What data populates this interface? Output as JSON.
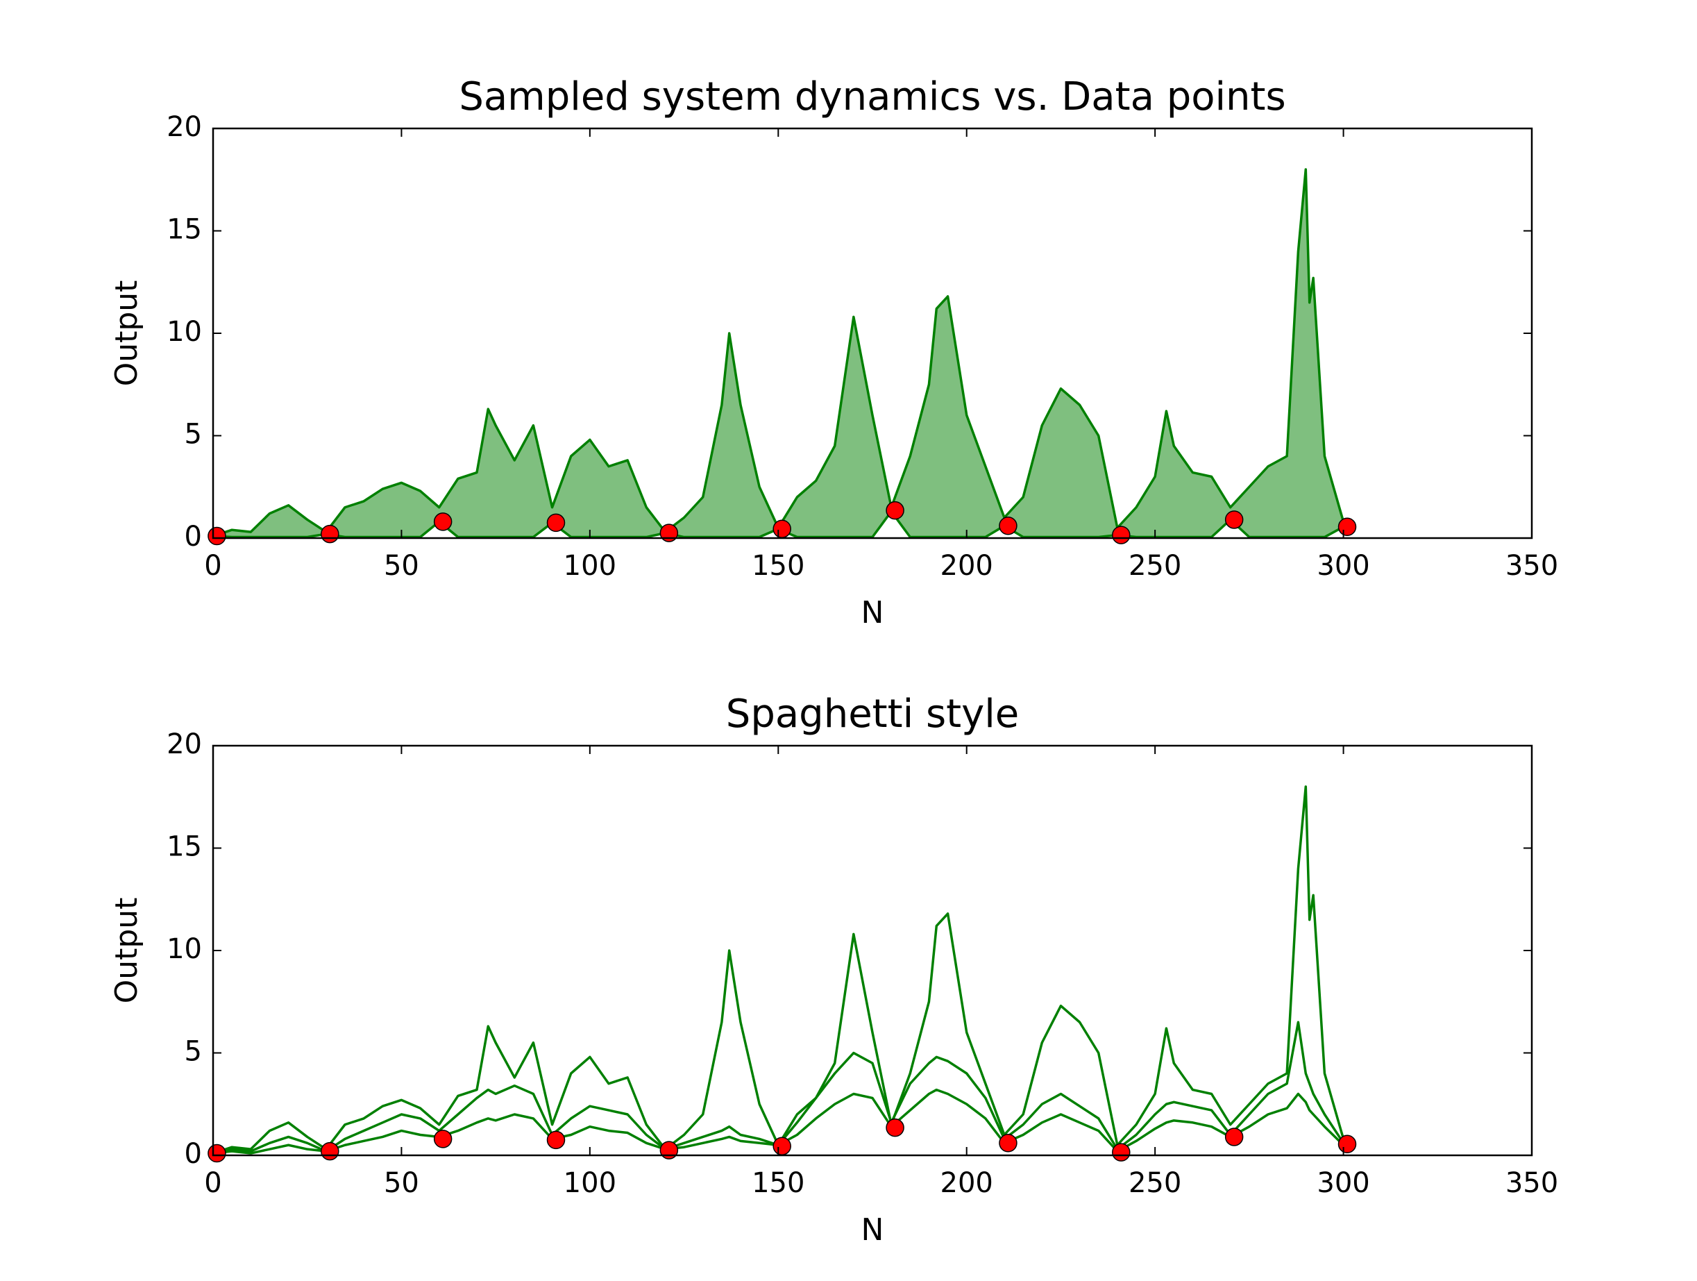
{
  "chart_data": [
    {
      "type": "area",
      "title": "Sampled system dynamics vs. Data points",
      "xlabel": "N",
      "ylabel": "Output",
      "xlim": [
        0,
        350
      ],
      "xticks": [
        0,
        50,
        100,
        150,
        200,
        250,
        300,
        350
      ],
      "ylim": [
        0,
        20
      ],
      "yticks": [
        0,
        5,
        10,
        15,
        20
      ],
      "fill": "#7fbf7f",
      "x": [
        0,
        5,
        10,
        15,
        20,
        25,
        30,
        35,
        40,
        45,
        50,
        55,
        60,
        65,
        70,
        73,
        75,
        80,
        85,
        90,
        95,
        100,
        105,
        110,
        115,
        120,
        125,
        130,
        135,
        137,
        140,
        145,
        150,
        155,
        160,
        165,
        170,
        175,
        180,
        185,
        190,
        192,
        195,
        200,
        205,
        210,
        215,
        220,
        225,
        230,
        235,
        240,
        245,
        250,
        253,
        255,
        260,
        265,
        270,
        275,
        280,
        285,
        288,
        290,
        291,
        292,
        295,
        300
      ],
      "series": [
        {
          "color": "#008000",
          "values": [
            0.1,
            0.4,
            0.3,
            1.2,
            1.6,
            0.9,
            0.3,
            1.5,
            1.8,
            2.4,
            2.7,
            2.3,
            1.5,
            2.9,
            3.2,
            6.3,
            5.5,
            3.8,
            5.5,
            1.5,
            4.0,
            4.8,
            3.5,
            3.8,
            1.5,
            0.3,
            1.0,
            2.0,
            6.5,
            10.0,
            6.5,
            2.5,
            0.5,
            2.0,
            2.8,
            4.5,
            10.8,
            6.0,
            1.5,
            4.0,
            7.5,
            11.2,
            11.8,
            6.0,
            3.5,
            1.0,
            2.0,
            5.5,
            7.3,
            6.5,
            5.0,
            0.5,
            1.5,
            3.0,
            6.2,
            4.5,
            3.2,
            3.0,
            1.5,
            2.5,
            3.5,
            4.0,
            14.0,
            18.0,
            11.5,
            12.7,
            4.0,
            0.8
          ]
        },
        {
          "color": "#008000",
          "values": [
            0.1,
            0.05,
            0.05,
            0.05,
            0.05,
            0.05,
            0.2,
            0.05,
            0.05,
            0.05,
            0.05,
            0.05,
            0.8,
            0.05,
            0.05,
            0.05,
            0.05,
            0.05,
            0.05,
            0.75,
            0.05,
            0.05,
            0.05,
            0.05,
            0.05,
            0.25,
            0.05,
            0.05,
            0.05,
            0.05,
            0.05,
            0.05,
            0.45,
            0.05,
            0.05,
            0.05,
            0.05,
            0.05,
            1.3,
            0.05,
            0.05,
            0.05,
            0.05,
            0.05,
            0.05,
            0.6,
            0.05,
            0.05,
            0.05,
            0.05,
            0.05,
            0.15,
            0.05,
            0.05,
            0.05,
            0.05,
            0.05,
            0.05,
            0.9,
            0.05,
            0.05,
            0.05,
            0.05,
            0.05,
            0.05,
            0.05,
            0.05,
            0.55
          ]
        }
      ],
      "markers": {
        "color": "#ff0000",
        "x": [
          1,
          31,
          61,
          91,
          121,
          151,
          181,
          211,
          241,
          271,
          301
        ],
        "values": [
          0.1,
          0.2,
          0.8,
          0.75,
          0.25,
          0.45,
          1.35,
          0.6,
          0.15,
          0.9,
          0.55
        ]
      }
    },
    {
      "type": "line",
      "title": "Spaghetti style",
      "xlabel": "N",
      "ylabel": "Output",
      "xlim": [
        0,
        350
      ],
      "xticks": [
        0,
        50,
        100,
        150,
        200,
        250,
        300,
        350
      ],
      "ylim": [
        0,
        20
      ],
      "yticks": [
        0,
        5,
        10,
        15,
        20
      ],
      "x": [
        0,
        5,
        10,
        15,
        20,
        25,
        30,
        35,
        40,
        45,
        50,
        55,
        60,
        65,
        70,
        73,
        75,
        80,
        85,
        90,
        95,
        100,
        105,
        110,
        115,
        120,
        125,
        130,
        135,
        137,
        140,
        145,
        150,
        155,
        160,
        165,
        170,
        175,
        180,
        185,
        190,
        192,
        195,
        200,
        205,
        210,
        215,
        220,
        225,
        230,
        235,
        240,
        245,
        250,
        253,
        255,
        260,
        265,
        270,
        275,
        280,
        285,
        288,
        290,
        291,
        292,
        295,
        300
      ],
      "series": [
        {
          "color": "#008000",
          "values": [
            0.1,
            0.4,
            0.3,
            1.2,
            1.6,
            0.9,
            0.3,
            1.5,
            1.8,
            2.4,
            2.7,
            2.3,
            1.5,
            2.9,
            3.2,
            6.3,
            5.5,
            3.8,
            5.5,
            1.5,
            4.0,
            4.8,
            3.5,
            3.8,
            1.5,
            0.3,
            1.0,
            2.0,
            6.5,
            10.0,
            6.5,
            2.5,
            0.5,
            2.0,
            2.8,
            4.5,
            10.8,
            6.0,
            1.5,
            4.0,
            7.5,
            11.2,
            11.8,
            6.0,
            3.5,
            1.0,
            2.0,
            5.5,
            7.3,
            6.5,
            5.0,
            0.5,
            1.5,
            3.0,
            6.2,
            4.5,
            3.2,
            3.0,
            1.5,
            2.5,
            3.5,
            4.0,
            14.0,
            18.0,
            11.5,
            12.7,
            4.0,
            0.8
          ]
        },
        {
          "color": "#008000",
          "values": [
            0.1,
            0.3,
            0.2,
            0.6,
            0.9,
            0.6,
            0.2,
            0.8,
            1.2,
            1.6,
            2.0,
            1.8,
            1.2,
            2.0,
            2.8,
            3.2,
            3.0,
            3.4,
            3.0,
            1.0,
            1.8,
            2.4,
            2.2,
            2.0,
            1.0,
            0.3,
            0.6,
            0.9,
            1.2,
            1.4,
            1.0,
            0.8,
            0.5,
            1.6,
            2.8,
            4.0,
            5.0,
            4.5,
            1.6,
            3.5,
            4.5,
            4.8,
            4.6,
            4.0,
            2.8,
            0.8,
            1.5,
            2.5,
            3.0,
            2.4,
            1.8,
            0.3,
            1.0,
            2.0,
            2.5,
            2.6,
            2.4,
            2.2,
            1.0,
            2.0,
            3.0,
            3.5,
            6.5,
            4.0,
            3.5,
            3.0,
            2.0,
            0.6
          ]
        },
        {
          "color": "#008000",
          "values": [
            0.1,
            0.2,
            0.1,
            0.3,
            0.5,
            0.3,
            0.2,
            0.5,
            0.7,
            0.9,
            1.2,
            1.0,
            0.9,
            1.2,
            1.6,
            1.8,
            1.7,
            2.0,
            1.8,
            0.8,
            1.0,
            1.4,
            1.2,
            1.1,
            0.6,
            0.3,
            0.4,
            0.6,
            0.8,
            0.9,
            0.7,
            0.6,
            0.5,
            1.0,
            1.8,
            2.5,
            3.0,
            2.8,
            1.4,
            2.2,
            3.0,
            3.2,
            3.0,
            2.5,
            1.8,
            0.6,
            1.0,
            1.6,
            2.0,
            1.6,
            1.2,
            0.2,
            0.7,
            1.3,
            1.6,
            1.7,
            1.6,
            1.4,
            0.9,
            1.4,
            2.0,
            2.3,
            3.0,
            2.6,
            2.2,
            2.0,
            1.4,
            0.5
          ]
        }
      ],
      "markers": {
        "color": "#ff0000",
        "x": [
          1,
          31,
          61,
          91,
          121,
          151,
          181,
          211,
          241,
          271,
          301
        ],
        "values": [
          0.1,
          0.2,
          0.8,
          0.75,
          0.25,
          0.45,
          1.35,
          0.6,
          0.15,
          0.9,
          0.55
        ]
      }
    }
  ]
}
